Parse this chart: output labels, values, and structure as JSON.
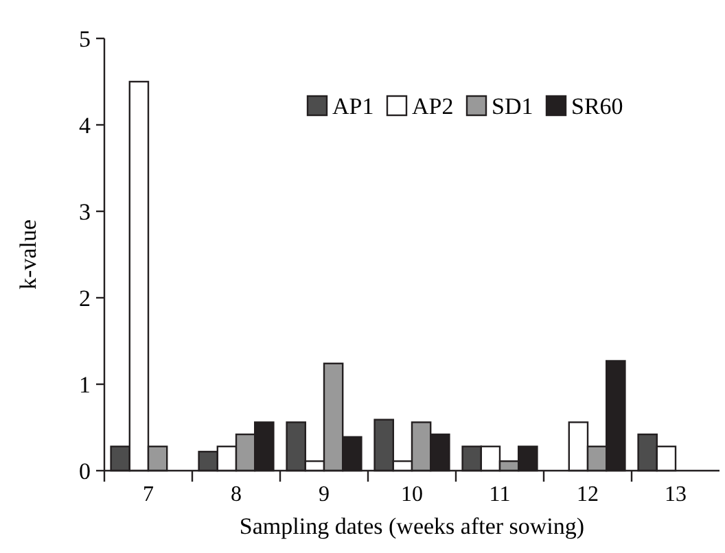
{
  "chart_data": {
    "type": "bar",
    "xlabel": "Sampling dates (weeks after sowing)",
    "ylabel": "k-value",
    "categories": [
      "7",
      "8",
      "9",
      "10",
      "11",
      "12",
      "13"
    ],
    "series": [
      {
        "name": "AP1",
        "color": "#4d4d4d",
        "values": [
          0.28,
          0.22,
          0.56,
          0.59,
          0.28,
          null,
          0.42
        ]
      },
      {
        "name": "AP2",
        "color": "#ffffff",
        "values": [
          4.5,
          0.28,
          0.11,
          0.11,
          0.28,
          0.56,
          0.28
        ]
      },
      {
        "name": "SD1",
        "color": "#999999",
        "values": [
          0.28,
          0.42,
          1.24,
          0.56,
          0.11,
          0.28,
          null
        ]
      },
      {
        "name": "SR60",
        "color": "#231f20",
        "values": [
          null,
          0.56,
          0.39,
          0.42,
          0.28,
          1.27,
          null
        ]
      }
    ],
    "ylim": [
      0,
      5
    ],
    "yticks": [
      0,
      1,
      2,
      3,
      4,
      5
    ],
    "grid": false,
    "legend": "top right"
  }
}
